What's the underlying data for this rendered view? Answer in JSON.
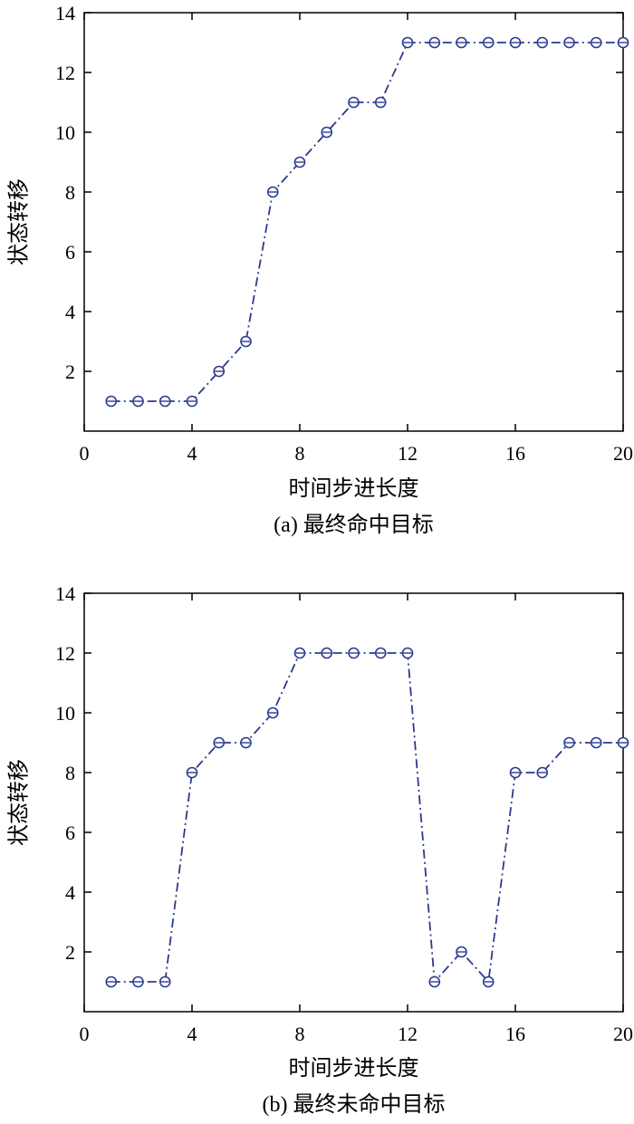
{
  "chart_data": [
    {
      "type": "line",
      "xlabel": "时间步进长度",
      "ylabel": "状态转移",
      "caption": "(a) 最终命中目标",
      "xlim": [
        0,
        20
      ],
      "ylim": [
        0,
        14
      ],
      "xticks": [
        0,
        4,
        8,
        12,
        16,
        20
      ],
      "yticks": [
        2,
        4,
        6,
        8,
        10,
        12,
        14
      ],
      "xtick_labels": [
        "0",
        "4",
        "8",
        "12",
        "16",
        "20"
      ],
      "ytick_labels": [
        "2",
        "4",
        "6",
        "8",
        "10",
        "12",
        "14"
      ],
      "grid": false,
      "series": [
        {
          "color": "#2b3a8f",
          "marker": "circle",
          "line_style": "dash-dot",
          "x": [
            1,
            2,
            3,
            4,
            5,
            6,
            7,
            8,
            9,
            10,
            11,
            12,
            13,
            14,
            15,
            16,
            17,
            18,
            19,
            20
          ],
          "values": [
            1,
            1,
            1,
            1,
            2,
            3,
            8,
            9,
            10,
            11,
            11,
            13,
            13,
            13,
            13,
            13,
            13,
            13,
            13,
            13
          ]
        }
      ]
    },
    {
      "type": "line",
      "xlabel": "时间步进长度",
      "ylabel": "状态转移",
      "caption": "(b) 最终未命中目标",
      "xlim": [
        0,
        20
      ],
      "ylim": [
        0,
        14
      ],
      "xticks": [
        0,
        4,
        8,
        12,
        16,
        20
      ],
      "yticks": [
        2,
        4,
        6,
        8,
        10,
        12,
        14
      ],
      "xtick_labels": [
        "0",
        "4",
        "8",
        "12",
        "16",
        "20"
      ],
      "ytick_labels": [
        "2",
        "4",
        "6",
        "8",
        "10",
        "12",
        "14"
      ],
      "grid": false,
      "series": [
        {
          "color": "#2b3a8f",
          "marker": "circle",
          "line_style": "dash-dot",
          "x": [
            1,
            2,
            3,
            4,
            5,
            6,
            7,
            8,
            9,
            10,
            11,
            12,
            13,
            14,
            15,
            16,
            17,
            18,
            19,
            20
          ],
          "values": [
            1,
            1,
            1,
            8,
            9,
            9,
            10,
            12,
            12,
            12,
            12,
            12,
            1,
            2,
            1,
            8,
            8,
            9,
            9,
            9
          ]
        }
      ]
    }
  ]
}
